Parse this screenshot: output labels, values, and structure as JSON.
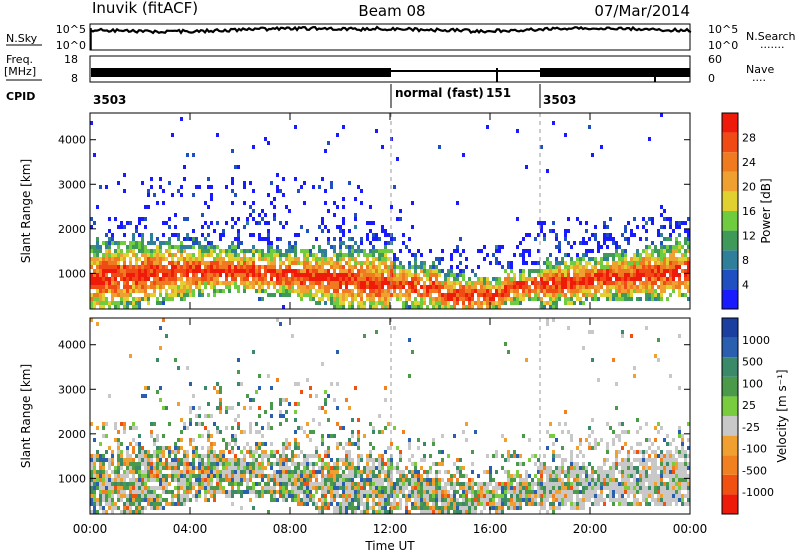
{
  "header": {
    "station": "Inuvik (fitACF)",
    "beam": "Beam 08",
    "date": "07/Mar/2014"
  },
  "strips": {
    "nsky_label": "N.Sky",
    "nsky_ticks": [
      "10^5",
      "10^0"
    ],
    "nsearch_label": "N.Search",
    "nsearch_ticks": [
      "10^5",
      "10^0"
    ],
    "freq_label": "Freq.",
    "freq_unit": "[MHz]",
    "freq_ticks": [
      "18",
      "8"
    ],
    "nave_label": "Nave",
    "nave_ticks": [
      "60",
      "0"
    ],
    "cpid_label": "CPID",
    "cpid_segments": [
      "3503",
      "normal (fast)",
      "151",
      "3503"
    ]
  },
  "x_axis": {
    "ticks": [
      "00:00",
      "04:00",
      "08:00",
      "12:00",
      "16:00",
      "20:00",
      "00:00"
    ],
    "label": "Time UT"
  },
  "chart_data": [
    {
      "type": "heatmap",
      "panel": "power",
      "ylabel": "Slant Range [km]",
      "xlim_hours": [
        0,
        24
      ],
      "ylim_km": [
        200,
        4600
      ],
      "yticks": [
        "1000",
        "2000",
        "3000",
        "4000"
      ],
      "colorbar": {
        "label": "Power [dB]",
        "ticks": [
          "4",
          "8",
          "12",
          "16",
          "20",
          "24",
          "28"
        ],
        "colors": [
          "#1a1aff",
          "#1f4fc0",
          "#2f7f9a",
          "#3f9a5a",
          "#6fcc3f",
          "#e0d030",
          "#f0a030",
          "#f07a20",
          "#f04a15",
          "#ee1a0a"
        ]
      },
      "mode_transitions_hours": [
        12,
        18
      ]
    },
    {
      "type": "heatmap",
      "panel": "velocity",
      "ylabel": "Slant Range [km]",
      "xlim_hours": [
        0,
        24
      ],
      "ylim_km": [
        200,
        4600
      ],
      "yticks": [
        "1000",
        "2000",
        "3000",
        "4000"
      ],
      "colorbar": {
        "label": "Velocity [m s-1]",
        "ticks": [
          "1000",
          "500",
          "100",
          "25",
          "-25",
          "-100",
          "-500",
          "-1000"
        ],
        "colors": [
          "#1a3fa0",
          "#2a5fb0",
          "#3a8a6a",
          "#4a9a4a",
          "#7acc3f",
          "#c8c8c8",
          "#f0a030",
          "#f08020",
          "#f05010",
          "#ee1a0a"
        ]
      },
      "mode_transitions_hours": [
        12,
        18
      ]
    }
  ]
}
